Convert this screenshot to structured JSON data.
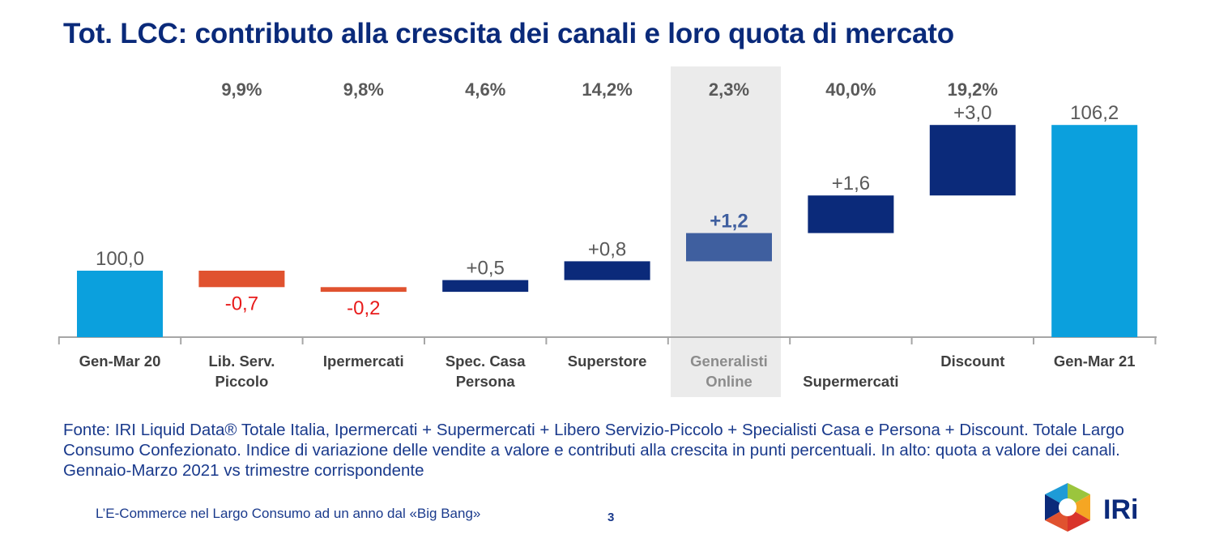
{
  "title": "Tot. LCC: contributo alla crescita dei canali e loro quota di mercato",
  "note": "Fonte: IRI Liquid Data® Totale Italia, Ipermercati + Supermercati + Libero Servizio-Piccolo + Specialisti Casa e Persona + Discount. Totale Largo Consumo Confezionato. Indice di variazione delle vendite a valore e contributi alla crescita in punti percentuali. In alto: quota a valore dei canali. Gennaio-Marzo 2021 vs trimestre corrispondente",
  "footer": "L’E-Commerce nel Largo Consumo ad un anno dal «Big Bang»",
  "page_number": "3",
  "logo_text": "IRi",
  "chart_data": {
    "type": "bar",
    "subtype": "waterfall",
    "categories": [
      {
        "line1": "Gen-Mar 20",
        "line2": ""
      },
      {
        "line1": "Lib. Serv.",
        "line2": "Piccolo"
      },
      {
        "line1": "Ipermercati",
        "line2": ""
      },
      {
        "line1": "Spec. Casa",
        "line2": "Persona"
      },
      {
        "line1": "Superstore",
        "line2": ""
      },
      {
        "line1": "Generalisti",
        "line2": "Online"
      },
      {
        "line1": "",
        "line2": "Supermercati"
      },
      {
        "line1": "Discount",
        "line2": ""
      },
      {
        "line1": "Gen-Mar 21",
        "line2": ""
      }
    ],
    "kinds": [
      "total",
      "delta",
      "delta",
      "delta",
      "delta",
      "delta",
      "delta",
      "delta",
      "total"
    ],
    "values": [
      100.0,
      -0.7,
      -0.2,
      0.5,
      0.8,
      1.2,
      1.6,
      3.0,
      106.2
    ],
    "value_labels": [
      "100,0",
      "-0,7",
      "-0,2",
      "+0,5",
      "+0,8",
      "+1,2",
      "+1,6",
      "+3,0",
      "106,2"
    ],
    "shares": [
      "",
      "9,9%",
      "9,8%",
      "4,6%",
      "14,2%",
      "2,3%",
      "40,0%",
      "19,2%",
      ""
    ],
    "highlight_index": 5,
    "colors": {
      "total": "#0ba0dd",
      "negative": "#e0522f",
      "positive": "#0b2a7a",
      "highlight_bar": "#3f5f9f",
      "highlight_bg": "#ebebeb",
      "negative_label": "#e81b1b",
      "label": "#595959",
      "share_label": "#595959",
      "axis": "#a6a6a6"
    }
  }
}
